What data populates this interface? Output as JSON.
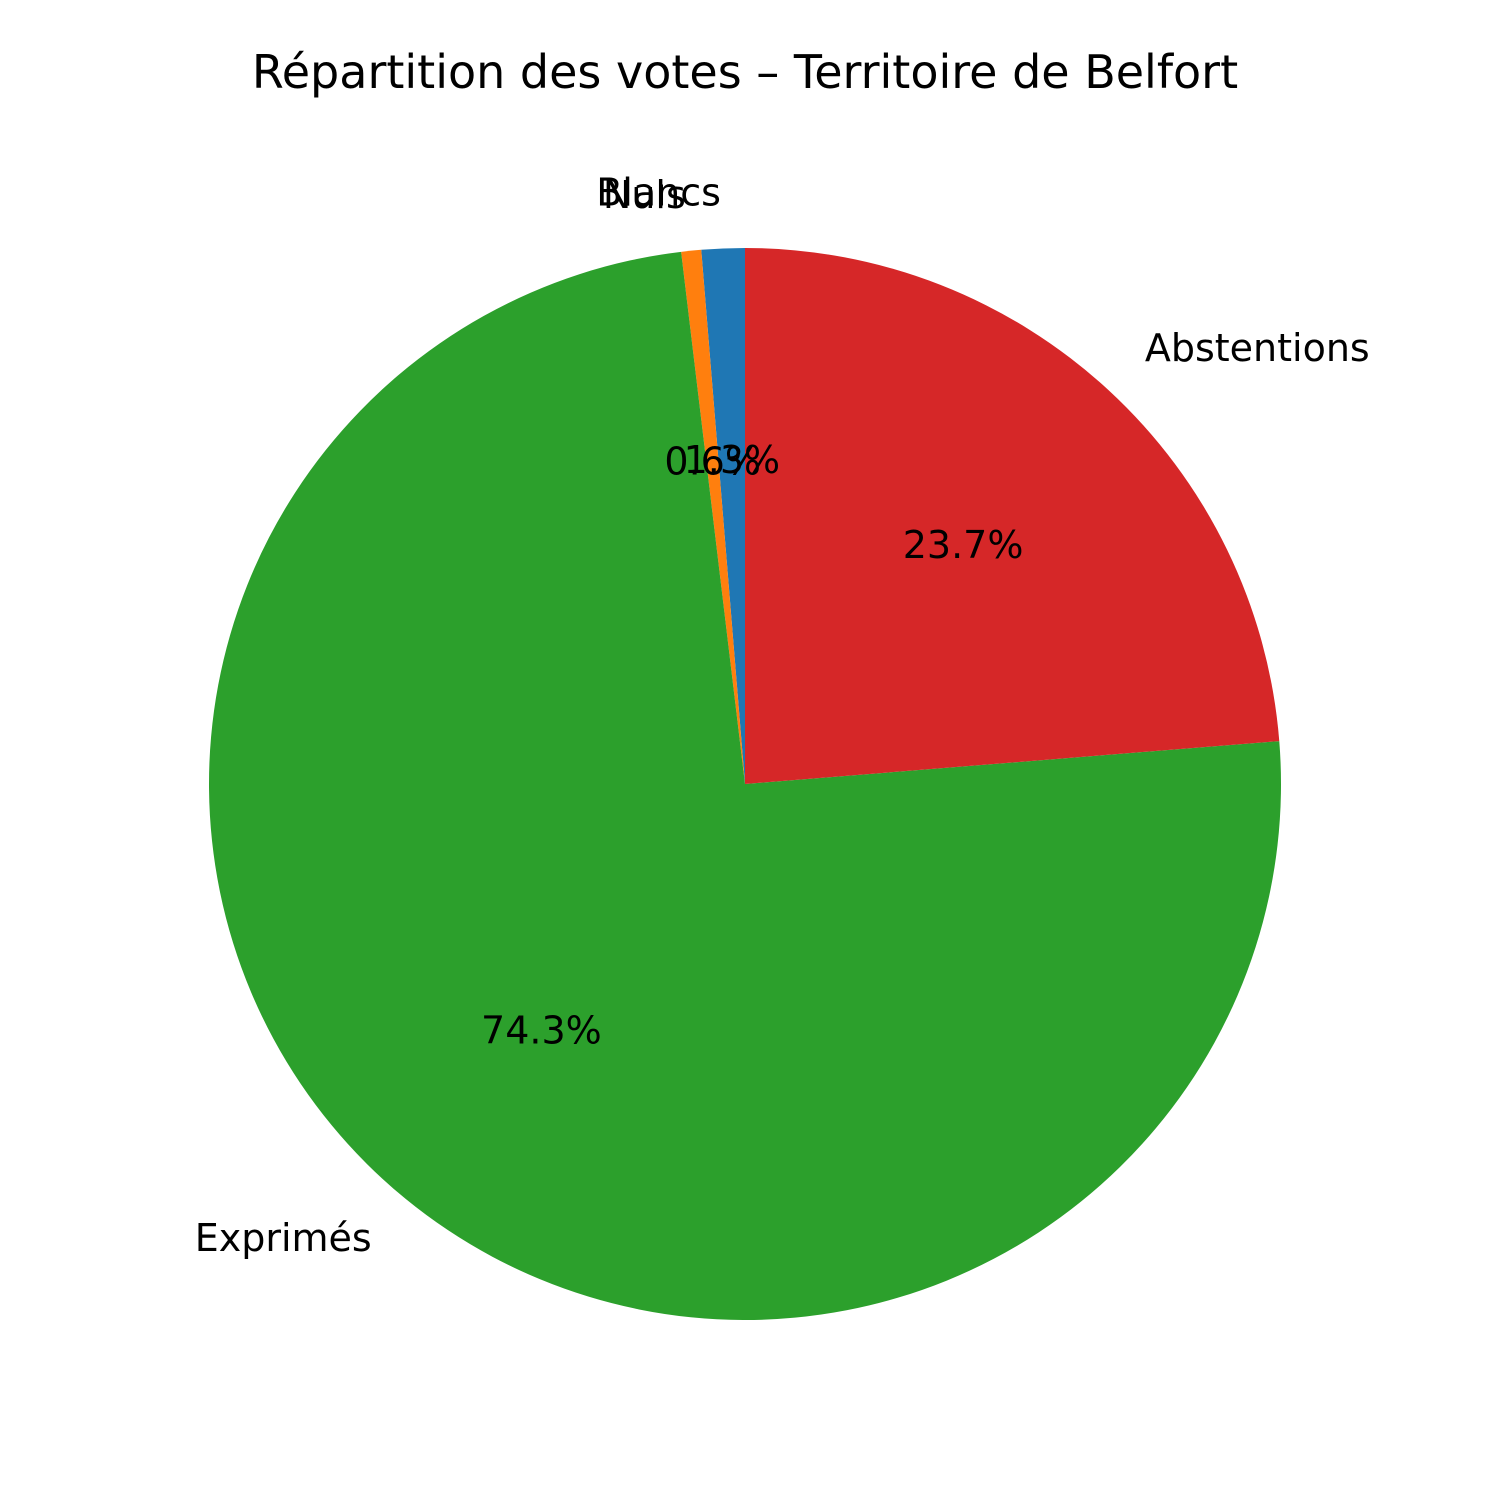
{
  "chart_data": {
    "type": "pie",
    "title": "Répartition des votes – Territoire de Belfort",
    "slices": [
      {
        "label": "Blancs",
        "value": 1.3,
        "pct_label": "1.3%",
        "color": "#1f77b4"
      },
      {
        "label": "Nuls",
        "value": 0.6,
        "pct_label": "0.6%",
        "color": "#ff7f0e"
      },
      {
        "label": "Exprimés",
        "value": 74.3,
        "pct_label": "74.3%",
        "color": "#2ca02c"
      },
      {
        "label": "Abstentions",
        "value": 23.7,
        "pct_label": "23.7%",
        "color": "#d62728"
      }
    ],
    "start_angle": 90,
    "direction": "counterclockwise",
    "legend": "none"
  }
}
